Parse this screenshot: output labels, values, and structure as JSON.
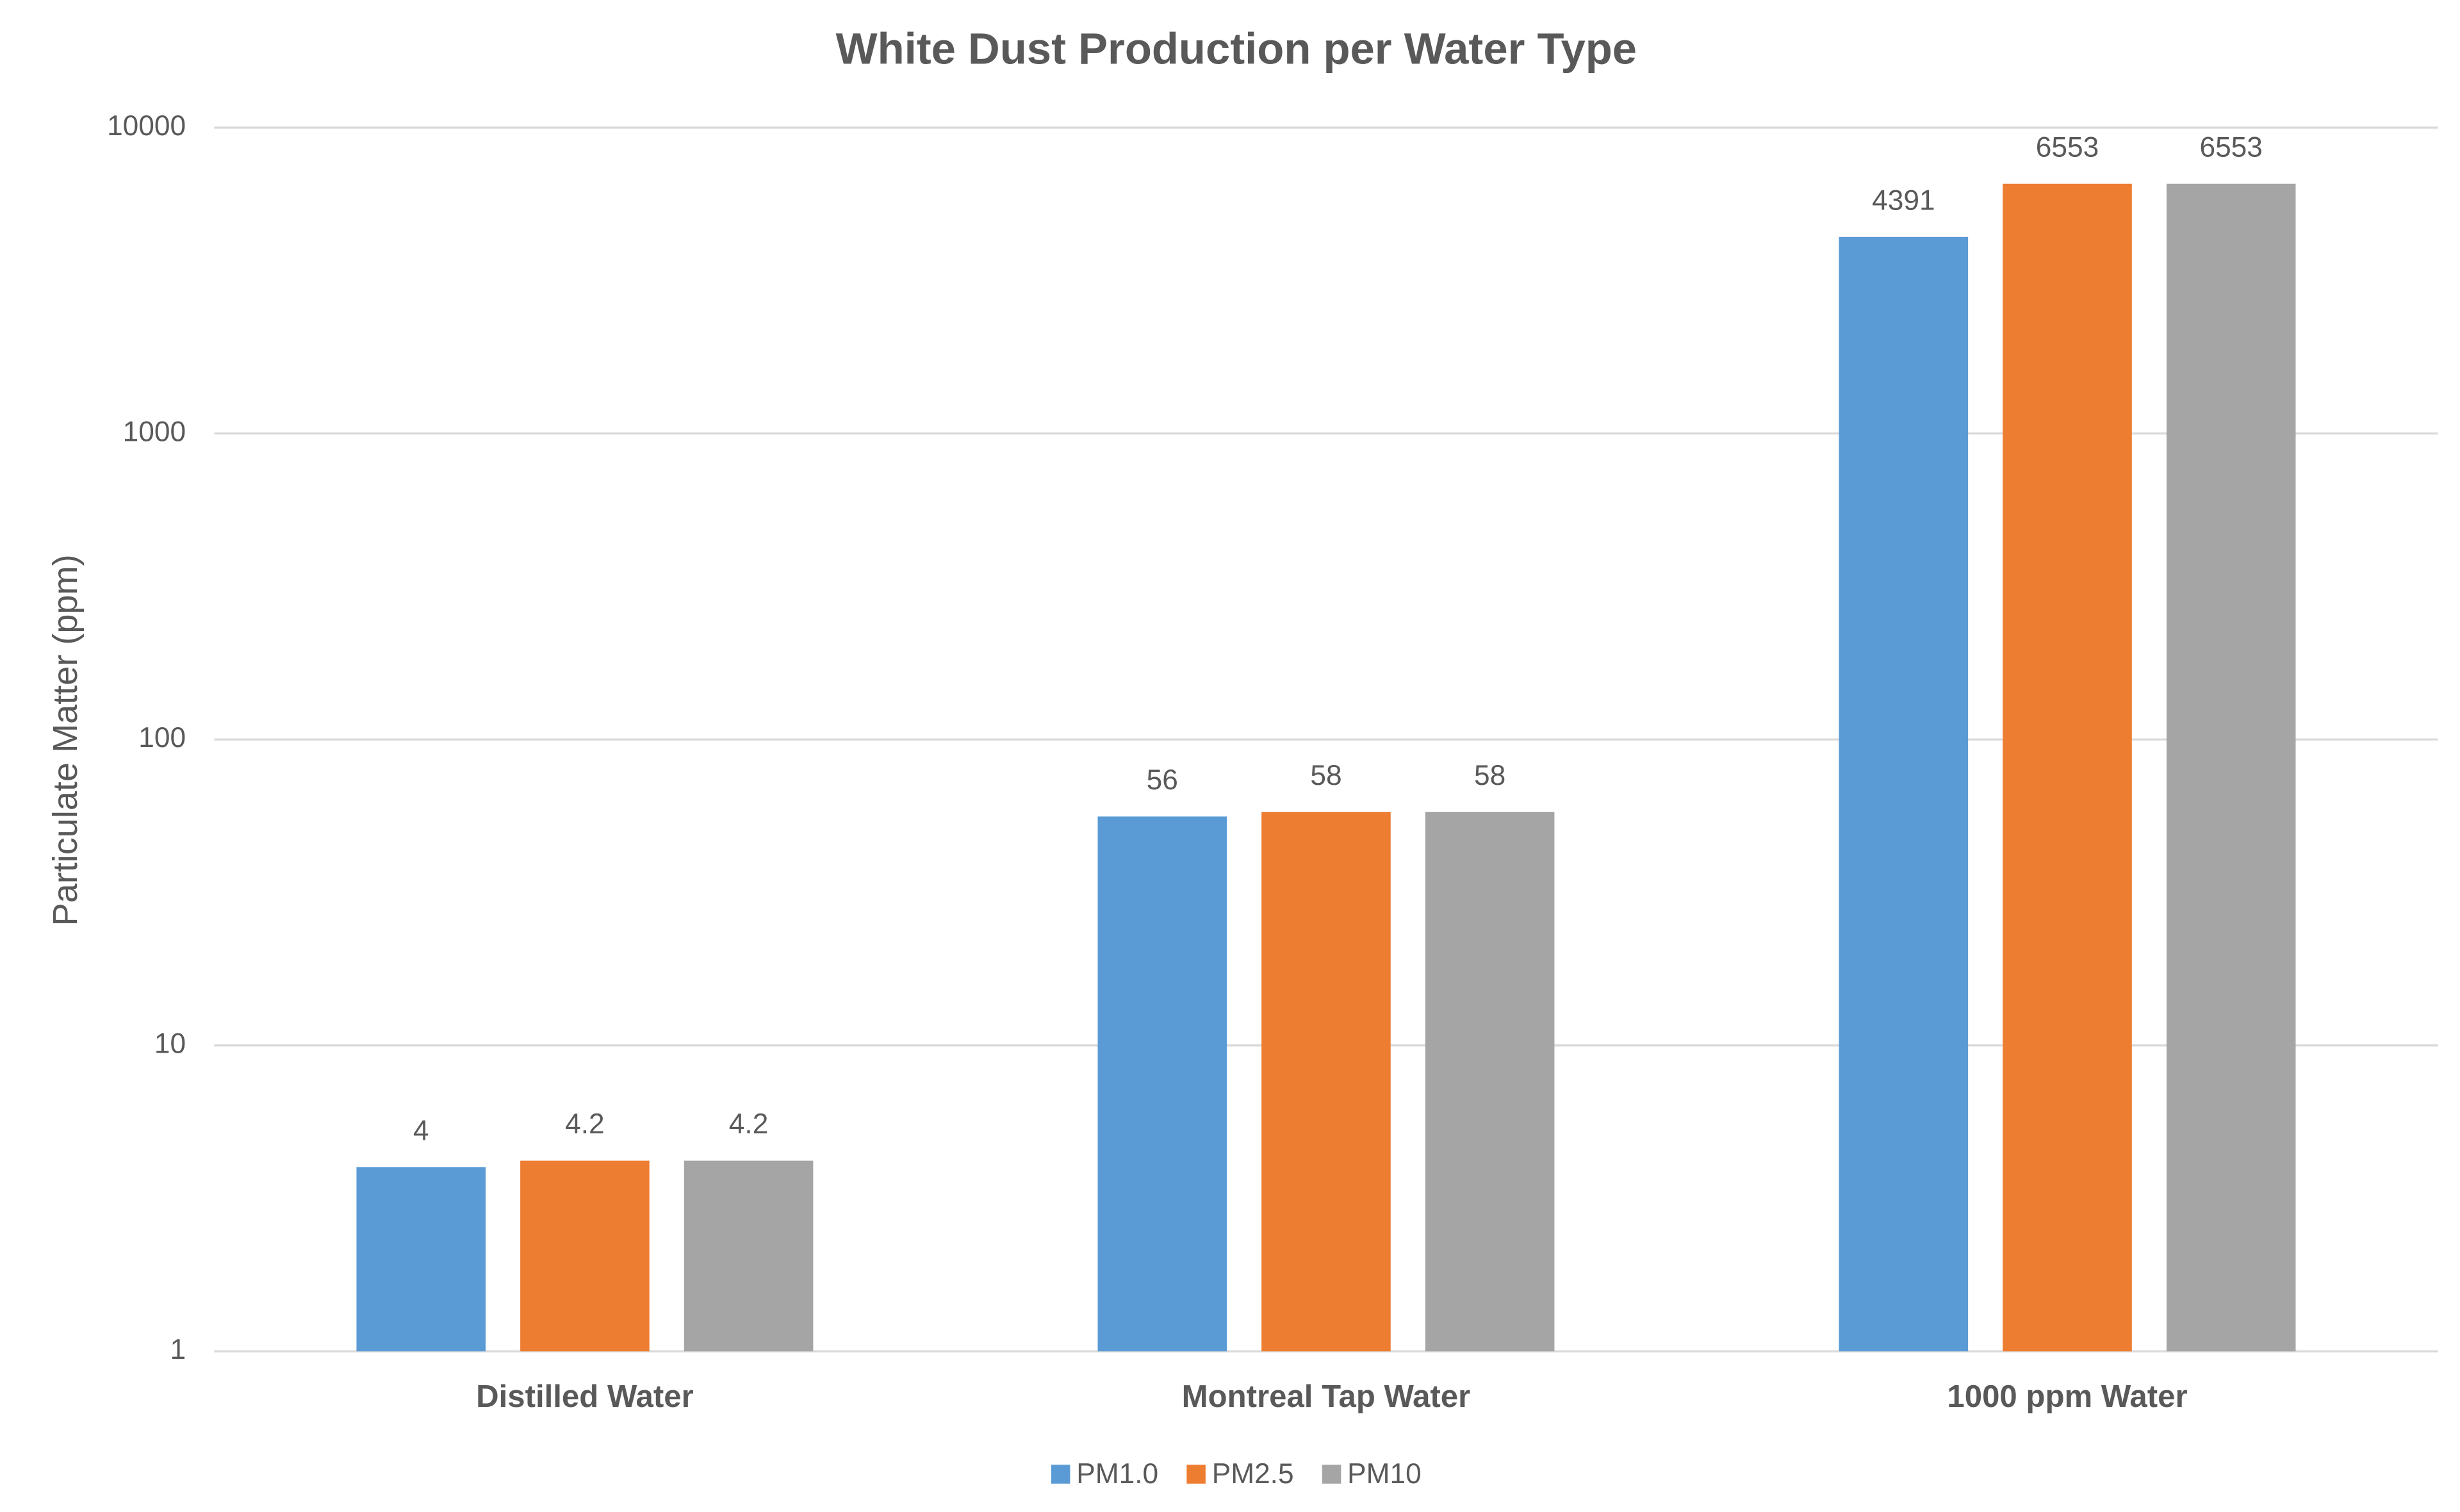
{
  "chart_data": {
    "type": "bar",
    "title": "White Dust Production per Water Type",
    "y_label": "Particulate Matter (ppm)",
    "categories": [
      "Distilled Water",
      "Montreal Tap Water",
      "1000 ppm Water"
    ],
    "series": [
      {
        "name": "PM1.0",
        "color": "#5b9bd5",
        "values": [
          4,
          56,
          4391
        ]
      },
      {
        "name": "PM2.5",
        "color": "#ed7d31",
        "values": [
          4.2,
          58,
          6553
        ]
      },
      {
        "name": "PM10",
        "color": "#a5a5a5",
        "values": [
          4.2,
          58,
          6553
        ]
      }
    ],
    "ylim": [
      1,
      10000
    ],
    "yticks": [
      1,
      10,
      100,
      1000,
      10000
    ],
    "log_scale": true,
    "grid": true,
    "legend": "bottom"
  }
}
